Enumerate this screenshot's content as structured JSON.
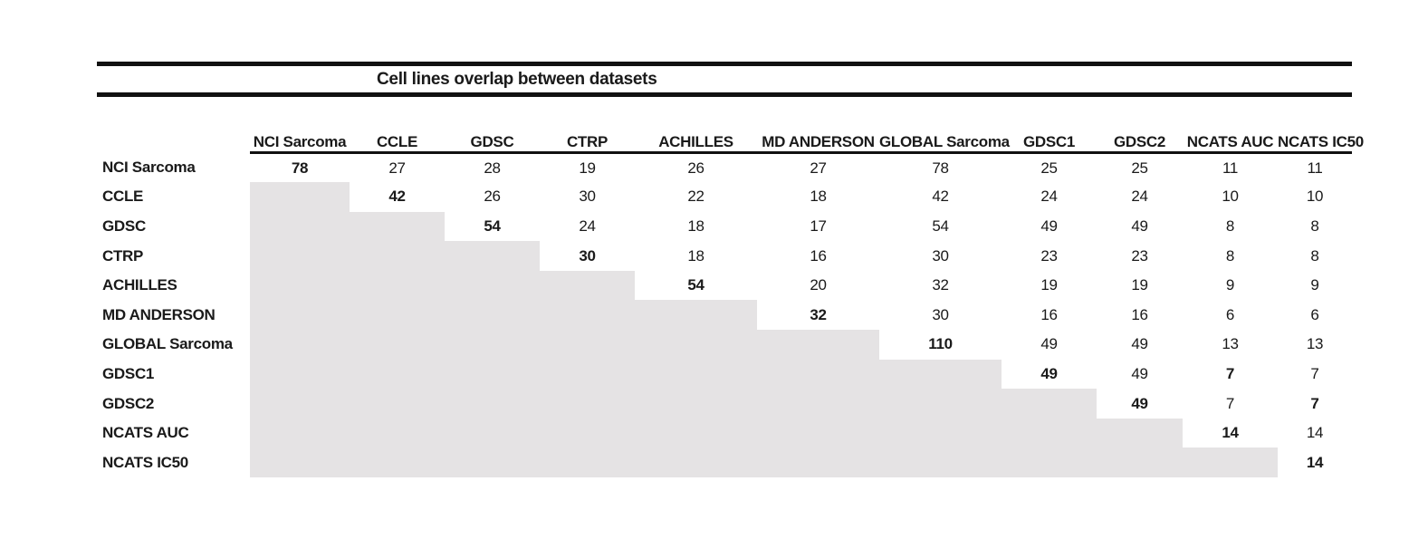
{
  "table": {
    "title": "Cell lines overlap between datasets",
    "datasets": [
      "NCI Sarcoma",
      "CCLE",
      "GDSC",
      "CTRP",
      "ACHILLES",
      "MD ANDERSON",
      "GLOBAL Sarcoma",
      "GDSC1",
      "GDSC2",
      "NCATS AUC",
      "NCATS IC50"
    ],
    "matrix": [
      [
        78,
        27,
        28,
        19,
        26,
        27,
        78,
        25,
        25,
        11,
        11
      ],
      [
        null,
        42,
        26,
        30,
        22,
        18,
        42,
        24,
        24,
        10,
        10
      ],
      [
        null,
        null,
        54,
        24,
        18,
        17,
        54,
        49,
        49,
        8,
        8
      ],
      [
        null,
        null,
        null,
        30,
        18,
        16,
        30,
        23,
        23,
        8,
        8
      ],
      [
        null,
        null,
        null,
        null,
        54,
        20,
        32,
        19,
        19,
        9,
        9
      ],
      [
        null,
        null,
        null,
        null,
        null,
        32,
        30,
        16,
        16,
        6,
        6
      ],
      [
        null,
        null,
        null,
        null,
        null,
        null,
        110,
        49,
        49,
        13,
        13
      ],
      [
        null,
        null,
        null,
        null,
        null,
        null,
        null,
        49,
        49,
        7,
        7
      ],
      [
        null,
        null,
        null,
        null,
        null,
        null,
        null,
        null,
        49,
        7,
        7
      ],
      [
        null,
        null,
        null,
        null,
        null,
        null,
        null,
        null,
        null,
        14,
        14
      ],
      [
        null,
        null,
        null,
        null,
        null,
        null,
        null,
        null,
        null,
        null,
        14
      ]
    ],
    "bold_cells": [
      [
        0,
        0
      ],
      [
        1,
        1
      ],
      [
        2,
        2
      ],
      [
        3,
        3
      ],
      [
        4,
        4
      ],
      [
        5,
        5
      ],
      [
        6,
        6
      ],
      [
        7,
        7
      ],
      [
        7,
        9
      ],
      [
        8,
        8
      ],
      [
        8,
        10
      ],
      [
        9,
        9
      ],
      [
        10,
        10
      ]
    ],
    "colors": {
      "lower_triangle_fill": "#e5e3e4",
      "rule": "#111111",
      "text": "#1a1a1a"
    }
  }
}
